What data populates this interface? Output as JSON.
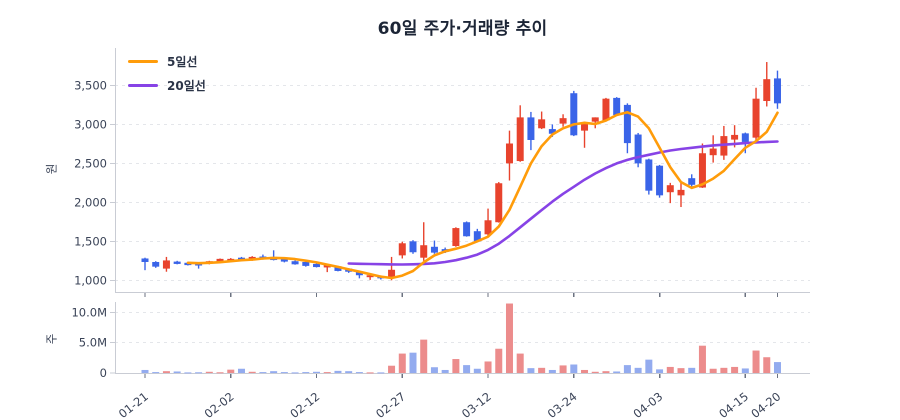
{
  "title": "60일 주가·거래량 추이",
  "legend": {
    "items": [
      {
        "label": "5일선",
        "color": "#ff9c0a"
      },
      {
        "label": "20일선",
        "color": "#8743e6"
      }
    ]
  },
  "price_axis": {
    "title": "원",
    "tick_labels": [
      "1,000",
      "1,500",
      "2,000",
      "2,500",
      "3,000",
      "3,500"
    ]
  },
  "volume_axis": {
    "title": "주",
    "tick_labels": [
      "0",
      "5.0M",
      "10.0M"
    ]
  },
  "x_axis": {
    "tick_labels": [
      "01-21",
      "02-02",
      "02-12",
      "02-27",
      "03-12",
      "03-24",
      "04-03",
      "04-15",
      "04-20"
    ]
  },
  "chart_data": {
    "type": "candlestick+volume",
    "title": "60일 주가·거래량 추이",
    "panels": [
      "price (원)",
      "volume (주)"
    ],
    "legend_position": "top-left inside plot",
    "grid": "horizontal dashed",
    "colors": {
      "up": "#e8432d",
      "down": "#3a64e8",
      "vol_up": "#ec8c8c",
      "vol_down": "#93abef",
      "ma5": "#ff9c0a",
      "ma20": "#8743e6",
      "text": "#3a4357",
      "grid": "#e4e6ea",
      "spine": "#c9ccd4"
    },
    "price_ylim": [
      850,
      3980
    ],
    "volume_ylim_millions": [
      0,
      11.7
    ],
    "price_ticks": [
      {
        "v": 1000,
        "label": "1,000"
      },
      {
        "v": 1500,
        "label": "1,500"
      },
      {
        "v": 2000,
        "label": "2,000"
      },
      {
        "v": 2500,
        "label": "2,500"
      },
      {
        "v": 3000,
        "label": "3,000"
      },
      {
        "v": 3500,
        "label": "3,500"
      }
    ],
    "volume_ticks": [
      {
        "v": 0,
        "label": "0"
      },
      {
        "v": 5,
        "label": "5.0M"
      },
      {
        "v": 10,
        "label": "10.0M"
      }
    ],
    "x_ticks": [
      {
        "label": "01-21",
        "index": 0
      },
      {
        "label": "02-02",
        "index": 8
      },
      {
        "label": "02-12",
        "index": 16
      },
      {
        "label": "02-27",
        "index": 24
      },
      {
        "label": "03-12",
        "index": 32
      },
      {
        "label": "03-24",
        "index": 40
      },
      {
        "label": "04-03",
        "index": 48
      },
      {
        "label": "04-15",
        "index": 56
      },
      {
        "label": "04-20",
        "index": 59
      }
    ],
    "candles_ohlcv_volume_in_millions": [
      [
        1280,
        1290,
        1130,
        1235,
        0.5
      ],
      [
        1235,
        1245,
        1160,
        1175,
        0.15
      ],
      [
        1150,
        1300,
        1110,
        1255,
        0.3
      ],
      [
        1240,
        1250,
        1205,
        1210,
        0.25
      ],
      [
        1225,
        1235,
        1190,
        1195,
        0.1
      ],
      [
        1210,
        1215,
        1150,
        1205,
        0.12
      ],
      [
        1215,
        1250,
        1205,
        1245,
        0.2
      ],
      [
        1235,
        1280,
        1225,
        1275,
        0.12
      ],
      [
        1240,
        1285,
        1235,
        1275,
        0.55
      ],
      [
        1290,
        1300,
        1245,
        1255,
        0.7
      ],
      [
        1260,
        1310,
        1250,
        1300,
        0.2
      ],
      [
        1305,
        1330,
        1265,
        1275,
        0.15
      ],
      [
        1300,
        1385,
        1255,
        1260,
        0.3
      ],
      [
        1275,
        1285,
        1230,
        1240,
        0.15
      ],
      [
        1245,
        1255,
        1200,
        1205,
        0.1
      ],
      [
        1235,
        1240,
        1175,
        1185,
        0.15
      ],
      [
        1210,
        1220,
        1165,
        1170,
        0.2
      ],
      [
        1165,
        1215,
        1105,
        1205,
        0.15
      ],
      [
        1180,
        1185,
        1115,
        1120,
        0.35
      ],
      [
        1150,
        1155,
        1095,
        1110,
        0.3
      ],
      [
        1105,
        1110,
        1025,
        1065,
        0.15
      ],
      [
        1040,
        1075,
        1005,
        1065,
        0.1
      ],
      [
        1050,
        1060,
        1010,
        1025,
        0.1
      ],
      [
        1040,
        1300,
        1000,
        1135,
        1.2
      ],
      [
        1320,
        1495,
        1280,
        1475,
        3.2
      ],
      [
        1500,
        1515,
        1340,
        1360,
        3.35
      ],
      [
        1290,
        1745,
        1250,
        1450,
        5.5
      ],
      [
        1430,
        1510,
        1340,
        1355,
        0.95
      ],
      [
        1400,
        1420,
        1350,
        1365,
        0.5
      ],
      [
        1440,
        1680,
        1430,
        1670,
        2.3
      ],
      [
        1745,
        1755,
        1560,
        1565,
        1.3
      ],
      [
        1630,
        1660,
        1495,
        1500,
        0.7
      ],
      [
        1590,
        1920,
        1570,
        1770,
        1.9
      ],
      [
        1745,
        2260,
        1740,
        2245,
        4.0
      ],
      [
        2500,
        2920,
        2280,
        2755,
        11.45
      ],
      [
        2530,
        3245,
        2520,
        3090,
        3.2
      ],
      [
        3090,
        3160,
        2670,
        2800,
        0.8
      ],
      [
        2950,
        3165,
        2940,
        3065,
        0.85
      ],
      [
        2940,
        3000,
        2840,
        2880,
        0.5
      ],
      [
        3010,
        3130,
        2970,
        3080,
        1.25
      ],
      [
        3400,
        3430,
        2850,
        2860,
        1.4
      ],
      [
        2920,
        3035,
        2700,
        3030,
        0.5
      ],
      [
        3035,
        3090,
        2950,
        3090,
        0.2
      ],
      [
        3050,
        3340,
        3040,
        3330,
        0.3
      ],
      [
        3340,
        3350,
        3110,
        3120,
        0.25
      ],
      [
        3250,
        3270,
        2630,
        2760,
        1.3
      ],
      [
        2870,
        2890,
        2450,
        2500,
        0.85
      ],
      [
        2550,
        2560,
        2100,
        2150,
        2.2
      ],
      [
        2470,
        2480,
        2060,
        2090,
        0.6
      ],
      [
        2130,
        2250,
        1990,
        2220,
        1.0
      ],
      [
        2090,
        2250,
        1940,
        2160,
        0.8
      ],
      [
        2310,
        2360,
        2190,
        2225,
        0.85
      ],
      [
        2190,
        2755,
        2185,
        2630,
        4.5
      ],
      [
        2605,
        2860,
        2510,
        2690,
        0.7
      ],
      [
        2600,
        2980,
        2545,
        2850,
        0.85
      ],
      [
        2805,
        2990,
        2705,
        2865,
        1.0
      ],
      [
        2885,
        2895,
        2630,
        2775,
        0.75
      ],
      [
        2830,
        3470,
        2780,
        3330,
        3.7
      ],
      [
        3300,
        3800,
        3230,
        3580,
        2.6
      ],
      [
        3590,
        3690,
        3200,
        3270,
        1.8
      ]
    ],
    "ma5": [
      null,
      null,
      null,
      null,
      1225,
      1220,
      1225,
      1232,
      1245,
      1258,
      1266,
      1280,
      1288,
      1283,
      1272,
      1252,
      1230,
      1200,
      1172,
      1140,
      1110,
      1078,
      1048,
      1030,
      1060,
      1120,
      1230,
      1320,
      1372,
      1405,
      1445,
      1500,
      1560,
      1690,
      1905,
      2200,
      2500,
      2720,
      2870,
      2950,
      3000,
      3020,
      3005,
      3050,
      3120,
      3155,
      3100,
      2950,
      2700,
      2450,
      2260,
      2185,
      2230,
      2305,
      2405,
      2555,
      2700,
      2785,
      2905,
      3150
    ],
    "ma20": [
      null,
      null,
      null,
      null,
      null,
      null,
      null,
      null,
      null,
      null,
      null,
      null,
      null,
      null,
      null,
      null,
      null,
      null,
      null,
      1215,
      1212,
      1209,
      1206,
      1204,
      1203,
      1205,
      1210,
      1218,
      1235,
      1258,
      1290,
      1330,
      1390,
      1470,
      1570,
      1680,
      1790,
      1900,
      2010,
      2110,
      2200,
      2290,
      2370,
      2440,
      2500,
      2545,
      2580,
      2610,
      2640,
      2665,
      2685,
      2700,
      2715,
      2730,
      2740,
      2750,
      2760,
      2768,
      2775,
      2780
    ]
  }
}
